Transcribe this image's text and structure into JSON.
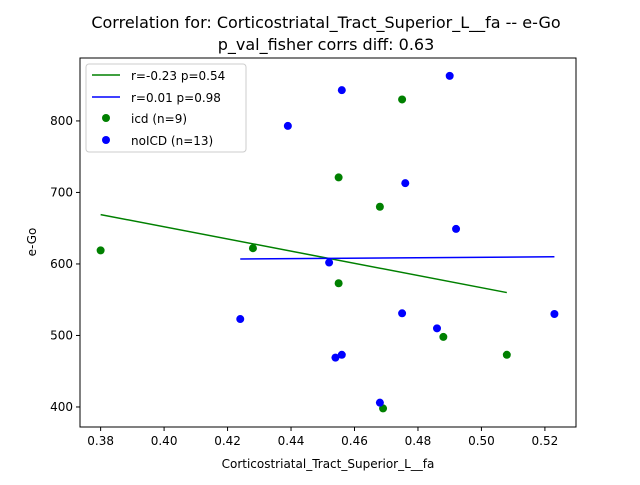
{
  "chart_data": {
    "type": "scatter",
    "title": "Correlation for: Corticostriatal_Tract_Superior_L__fa -- e-Go",
    "subtitle": "p_val_fisher corrs diff: 0.63",
    "xlabel": "Corticostriatal_Tract_Superior_L__fa",
    "ylabel": "e-Go",
    "xlim": [
      0.3735,
      0.5298
    ],
    "ylim": [
      372,
      888
    ],
    "x_ticks": [
      0.38,
      0.4,
      0.42,
      0.44,
      0.46,
      0.48,
      0.5,
      0.52
    ],
    "x_tick_labels": [
      "0.38",
      "0.40",
      "0.42",
      "0.44",
      "0.46",
      "0.48",
      "0.50",
      "0.52"
    ],
    "y_ticks": [
      400,
      500,
      600,
      700,
      800
    ],
    "y_tick_labels": [
      "400",
      "500",
      "600",
      "700",
      "800"
    ],
    "grid": false,
    "legend_position": "top-left",
    "series": [
      {
        "name": "icd (n=9)",
        "color": "#008000",
        "marker": "circle",
        "points": [
          {
            "x": 0.38,
            "y": 619
          },
          {
            "x": 0.428,
            "y": 622
          },
          {
            "x": 0.455,
            "y": 721
          },
          {
            "x": 0.455,
            "y": 573
          },
          {
            "x": 0.468,
            "y": 680
          },
          {
            "x": 0.469,
            "y": 398
          },
          {
            "x": 0.475,
            "y": 830
          },
          {
            "x": 0.488,
            "y": 498
          },
          {
            "x": 0.508,
            "y": 473
          }
        ]
      },
      {
        "name": "noICD (n=13)",
        "color": "#0000ff",
        "marker": "circle",
        "points": [
          {
            "x": 0.424,
            "y": 523
          },
          {
            "x": 0.439,
            "y": 793
          },
          {
            "x": 0.452,
            "y": 602
          },
          {
            "x": 0.454,
            "y": 469
          },
          {
            "x": 0.456,
            "y": 843
          },
          {
            "x": 0.456,
            "y": 473
          },
          {
            "x": 0.468,
            "y": 406
          },
          {
            "x": 0.475,
            "y": 531
          },
          {
            "x": 0.476,
            "y": 713
          },
          {
            "x": 0.486,
            "y": 510
          },
          {
            "x": 0.49,
            "y": 863
          },
          {
            "x": 0.492,
            "y": 649
          },
          {
            "x": 0.523,
            "y": 530
          }
        ]
      }
    ],
    "fit_lines": [
      {
        "name": "r=-0.23 p=0.54",
        "color": "#008000",
        "x": [
          0.38,
          0.508
        ],
        "y": [
          669,
          560
        ]
      },
      {
        "name": "r=0.01 p=0.98",
        "color": "#0000ff",
        "x": [
          0.424,
          0.523
        ],
        "y": [
          607,
          610
        ]
      }
    ]
  }
}
